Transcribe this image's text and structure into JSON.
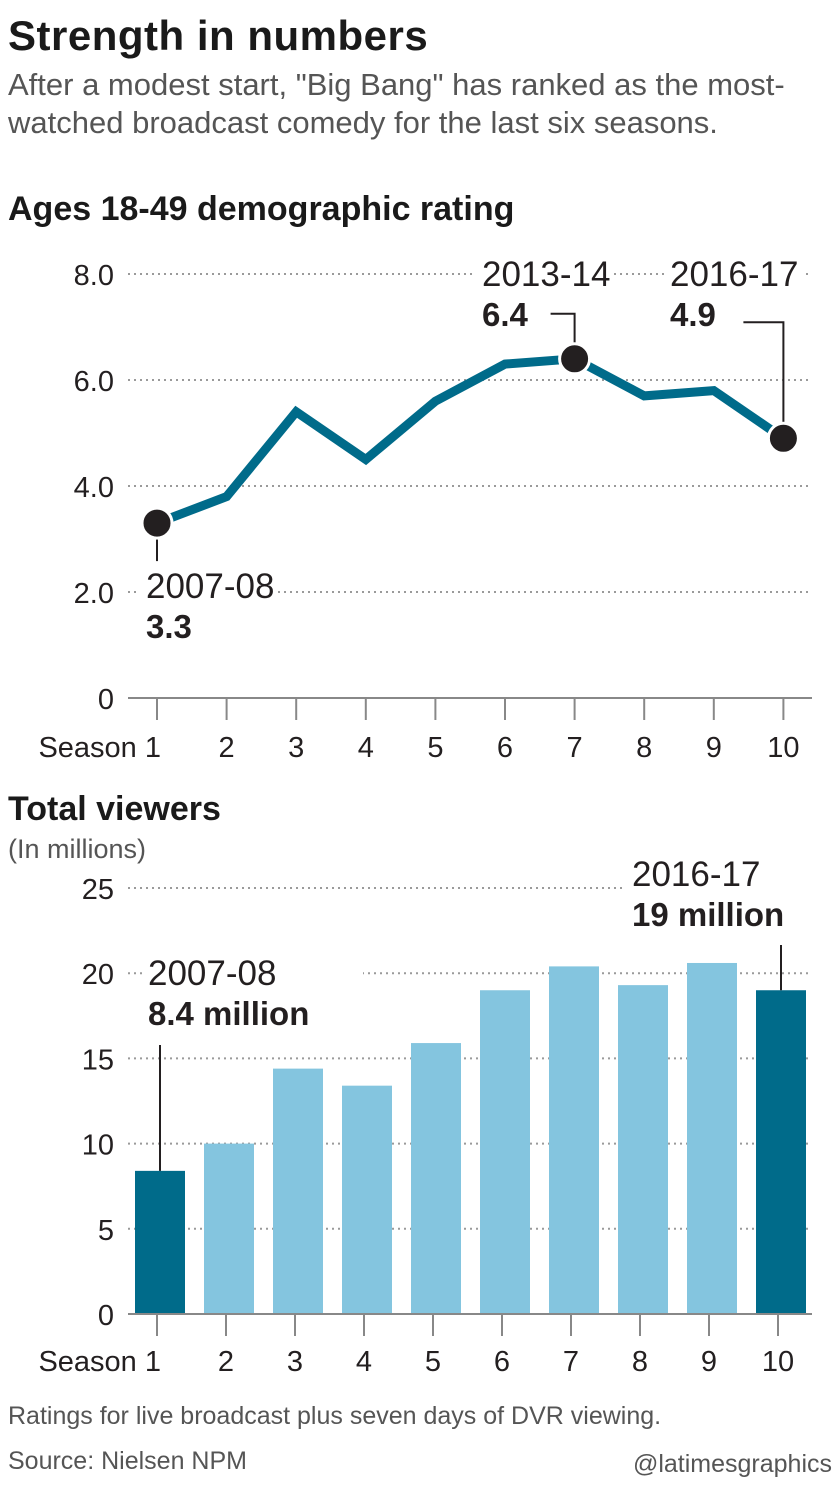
{
  "header": {
    "title": "Strength in numbers",
    "subtitle": "After a modest start, \"Big Bang\" has ranked as the most-watched broadcast comedy for the last six seasons."
  },
  "footer": {
    "note": "Ratings for live broadcast plus seven days of DVR viewing.",
    "source": "Source: Nielsen NPM",
    "credit": "@latimesgraphics"
  },
  "colors": {
    "line": "#006b8a",
    "bar": "#84c5df",
    "bar_highlight": "#006b8a",
    "marker": "#231f20",
    "grid": "#9a9a9a"
  },
  "chart_data": [
    {
      "type": "line",
      "title": "Ages 18-49 demographic rating",
      "x": [
        "Season 1",
        "2",
        "3",
        "4",
        "5",
        "6",
        "7",
        "8",
        "9",
        "10"
      ],
      "y": [
        3.3,
        3.8,
        5.4,
        4.5,
        5.6,
        6.3,
        6.4,
        5.7,
        5.8,
        4.9
      ],
      "yticks": [
        "0",
        "2.0",
        "4.0",
        "6.0",
        "8.0"
      ],
      "ylim": [
        0,
        8
      ],
      "grid": true,
      "annotations": [
        {
          "season_index": 0,
          "label": "2007-08",
          "value": "3.3"
        },
        {
          "season_index": 6,
          "label": "2013-14",
          "value": "6.4"
        },
        {
          "season_index": 9,
          "label": "2016-17",
          "value": "4.9"
        }
      ]
    },
    {
      "type": "bar",
      "title": "Total viewers",
      "units": "(In millions)",
      "categories": [
        "Season 1",
        "2",
        "3",
        "4",
        "5",
        "6",
        "7",
        "8",
        "9",
        "10"
      ],
      "values": [
        8.4,
        10.0,
        14.4,
        13.4,
        15.9,
        19.0,
        20.4,
        19.3,
        20.6,
        19.0
      ],
      "highlight_indices": [
        0,
        9
      ],
      "yticks": [
        "0",
        "5",
        "10",
        "15",
        "20",
        "25"
      ],
      "ylim": [
        0,
        25
      ],
      "grid": true,
      "annotations": [
        {
          "season_index": 0,
          "label": "2007-08",
          "value": "8.4 million"
        },
        {
          "season_index": 9,
          "label": "2016-17",
          "value": "19 million"
        }
      ]
    }
  ]
}
